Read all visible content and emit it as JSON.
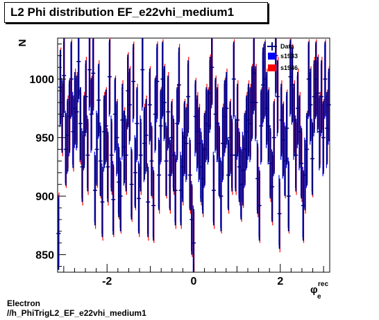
{
  "chart_data": {
    "type": "scatter",
    "title": "L2 Phi distribution EF_e22vhi_medium1",
    "ylabel": "N",
    "xlabel": "φ",
    "xlabel_sub": "e",
    "xlabel_sup": "rec",
    "xlim": [
      -3.1416,
      3.1416
    ],
    "ylim": [
      835,
      1035
    ],
    "xticks": [
      -2,
      0,
      2
    ],
    "yticks": [
      850,
      900,
      950,
      1000
    ],
    "legend_position": "top-right",
    "legend": [
      "Data",
      "s1933",
      "s1946"
    ],
    "colors": {
      "data": "#000080",
      "s1933": "#0000ff",
      "s1946": "#ff0000"
    },
    "series": [
      {
        "name": "Data",
        "style": "points",
        "y": [
          868,
          993,
          968,
          1003,
          940,
          952,
          968,
          1000,
          955,
          975,
          972,
          1015,
          962,
          925,
          955,
          985,
          935,
          1008,
          970,
          1005,
          905,
          940,
          982,
          930,
          895,
          955,
          960,
          925,
          1002,
          935,
          897,
          970,
          950,
          912,
          900,
          965,
          942,
          935,
          990,
          978,
          910,
          998,
          920,
          962,
          898,
          935,
          1008,
          945,
          952,
          895,
          978,
          930,
          892,
          970,
          998,
          918,
          960,
          1000,
          980,
          930,
          972,
          918,
          950,
          935,
          905,
          962,
          995,
          905,
          925,
          950,
          945,
          985,
          918,
          880,
          860,
          968,
          955,
          945,
          925,
          915,
          940,
          962,
          960,
          988,
          1010,
          905,
          970,
          962,
          930,
          900,
          945,
          968,
          975,
          918,
          950,
          935,
          1000,
          935,
          965,
          925,
          910,
          922,
          940,
          955,
          965,
          962,
          980,
          1005,
          980,
          915,
          892,
          960,
          995,
          1000,
          975,
          960,
          928,
          908,
          950,
          1020,
          985,
          885,
          965,
          948,
          930,
          958,
          900,
          1002,
          995,
          965,
          935,
          975,
          955,
          928,
          892,
          918,
          940,
          1000,
          978,
          932,
          985,
          1000,
          988,
          955,
          985,
          950,
          1000,
          958,
          978
        ],
        "err": [
          31,
          32,
          31,
          32,
          31,
          31,
          31,
          32,
          31,
          31,
          31,
          32,
          31,
          30,
          31,
          31,
          31,
          32,
          31,
          32,
          30,
          31,
          31,
          30,
          30,
          31,
          31,
          30,
          32,
          31,
          30,
          31,
          31,
          30,
          30,
          31,
          31,
          31,
          31,
          31,
          30,
          32,
          30,
          31,
          30,
          31,
          32,
          31,
          31,
          30,
          31,
          30,
          30,
          31,
          32,
          30,
          31,
          32,
          31,
          30,
          31,
          30,
          31,
          31,
          30,
          31,
          32,
          30,
          30,
          31,
          31,
          31,
          30,
          30,
          29,
          31,
          31,
          31,
          30,
          30,
          31,
          31,
          31,
          31,
          32,
          30,
          31,
          31,
          30,
          30,
          31,
          31,
          31,
          30,
          31,
          31,
          32,
          31,
          31,
          30,
          30,
          30,
          31,
          31,
          31,
          31,
          31,
          32,
          31,
          30,
          30,
          31,
          32,
          32,
          31,
          31,
          30,
          30,
          31,
          32,
          31,
          30,
          31,
          31,
          30,
          31,
          30,
          32,
          32,
          31,
          31,
          31,
          31,
          30,
          30,
          30,
          31,
          32,
          31,
          31,
          31,
          32,
          31,
          31,
          31,
          31,
          32,
          31,
          31
        ]
      },
      {
        "name": "s1933",
        "style": "band",
        "y": [
          870,
          990,
          970,
          1000,
          942,
          950,
          965,
          998,
          958,
          972,
          970,
          1012,
          960,
          928,
          953,
          982,
          938,
          1005,
          968,
          1002,
          908,
          942,
          980,
          932,
          898,
          952,
          958,
          928,
          1000,
          938,
          900,
          968,
          948,
          915,
          903,
          962,
          940,
          938,
          988,
          975,
          912,
          995,
          922,
          960,
          900,
          938,
          1005,
          943,
          950,
          898,
          975,
          932,
          895,
          968,
          995,
          920,
          958,
          998,
          978,
          932,
          970,
          920,
          948,
          938,
          908,
          960,
          992,
          908,
          928,
          948,
          943,
          982,
          920,
          883,
          863,
          965,
          952,
          943,
          928,
          918,
          938,
          960,
          958,
          985,
          1007,
          908,
          968,
          960,
          932,
          903,
          943,
          965,
          972,
          920,
          948,
          938,
          998,
          938,
          962,
          928,
          912,
          925,
          938,
          953,
          962,
          960,
          978,
          1002,
          978,
          918,
          895,
          958,
          992,
          998,
          972,
          958,
          930,
          910,
          948,
          1017,
          982,
          888,
          962,
          946,
          932,
          955,
          903,
          1000,
          992,
          962,
          938,
          972,
          953,
          930,
          895,
          920,
          938,
          998,
          975,
          935,
          982,
          998,
          985,
          953,
          982,
          948,
          998,
          955,
          975
        ],
        "err": [
          31,
          31,
          31,
          32,
          31,
          31,
          31,
          32,
          31,
          31,
          31,
          32,
          31,
          30,
          31,
          31,
          31,
          32,
          31,
          32,
          30,
          31,
          31,
          31,
          30,
          31,
          31,
          30,
          32,
          31,
          30,
          31,
          31,
          30,
          30,
          31,
          31,
          31,
          31,
          31,
          30,
          32,
          30,
          31,
          30,
          31,
          32,
          31,
          31,
          30,
          31,
          31,
          30,
          31,
          32,
          30,
          31,
          32,
          31,
          31,
          31,
          30,
          31,
          31,
          30,
          31,
          31,
          30,
          30,
          31,
          31,
          31,
          30,
          30,
          29,
          31,
          31,
          31,
          30,
          30,
          31,
          31,
          31,
          31,
          32,
          30,
          31,
          31,
          31,
          30,
          31,
          31,
          31,
          30,
          31,
          31,
          32,
          31,
          31,
          30,
          30,
          30,
          31,
          31,
          31,
          31,
          31,
          32,
          31,
          30,
          30,
          31,
          31,
          32,
          31,
          31,
          30,
          30,
          31,
          32,
          31,
          30,
          31,
          31,
          31,
          31,
          30,
          32,
          31,
          31,
          31,
          31,
          31,
          30,
          30,
          30,
          31,
          32,
          31,
          31,
          31,
          32,
          31,
          31,
          31,
          31,
          32,
          31,
          31
        ]
      },
      {
        "name": "s1946",
        "style": "band",
        "y": [
          872,
          995,
          965,
          1005,
          938,
          955,
          970,
          1002,
          952,
          978,
          975,
          1018,
          958,
          922,
          958,
          988,
          932,
          1010,
          972,
          1008,
          902,
          938,
          985,
          928,
          892,
          958,
          962,
          922,
          1005,
          932,
          895,
          972,
          952,
          910,
          898,
          968,
          945,
          932,
          992,
          980,
          908,
          1000,
          918,
          965,
          895,
          932,
          1010,
          948,
          955,
          892,
          980,
          928,
          890,
          972,
          1000,
          915,
          962,
          1002,
          982,
          928,
          975,
          915,
          952,
          932,
          902,
          965,
          998,
          902,
          922,
          952,
          948,
          988,
          915,
          878,
          858,
          970,
          958,
          948,
          922,
          912,
          942,
          965,
          962,
          990,
          1012,
          902,
          972,
          965,
          928,
          898,
          948,
          970,
          978,
          915,
          952,
          932,
          1002,
          932,
          968,
          922,
          908,
          920,
          942,
          958,
          968,
          965,
          982,
          1008,
          982,
          912,
          890,
          962,
          998,
          1002,
          978,
          962,
          925,
          905,
          952,
          1022,
          988,
          882,
          968,
          950,
          928,
          960,
          898,
          1005,
          998,
          968,
          932,
          978,
          958,
          925,
          890,
          915,
          942,
          1002,
          980,
          930,
          988,
          1002,
          990,
          958,
          988,
          952,
          1002,
          960,
          980
        ],
        "err": [
          31,
          32,
          31,
          32,
          31,
          31,
          31,
          32,
          31,
          31,
          31,
          32,
          31,
          30,
          31,
          31,
          31,
          32,
          31,
          32,
          30,
          31,
          31,
          30,
          30,
          31,
          31,
          30,
          32,
          31,
          30,
          31,
          31,
          30,
          30,
          31,
          31,
          31,
          31,
          31,
          30,
          32,
          30,
          31,
          30,
          31,
          32,
          31,
          31,
          30,
          31,
          30,
          30,
          31,
          32,
          30,
          31,
          32,
          31,
          30,
          31,
          30,
          31,
          31,
          30,
          31,
          32,
          30,
          30,
          31,
          31,
          31,
          30,
          30,
          29,
          31,
          31,
          31,
          30,
          30,
          31,
          31,
          31,
          31,
          32,
          30,
          31,
          31,
          30,
          30,
          31,
          31,
          31,
          30,
          31,
          31,
          32,
          31,
          31,
          30,
          30,
          30,
          31,
          31,
          31,
          31,
          31,
          32,
          31,
          30,
          30,
          31,
          32,
          32,
          31,
          31,
          30,
          30,
          31,
          32,
          31,
          30,
          31,
          31,
          30,
          31,
          30,
          32,
          32,
          31,
          31,
          31,
          31,
          30,
          30,
          30,
          31,
          32,
          31,
          31,
          31,
          32,
          31,
          31,
          31,
          31,
          32,
          31,
          31
        ]
      }
    ]
  },
  "footer": {
    "line1": "Electron",
    "line2": "//h_PhiTrigL2_EF_e22vhi_medium1"
  }
}
